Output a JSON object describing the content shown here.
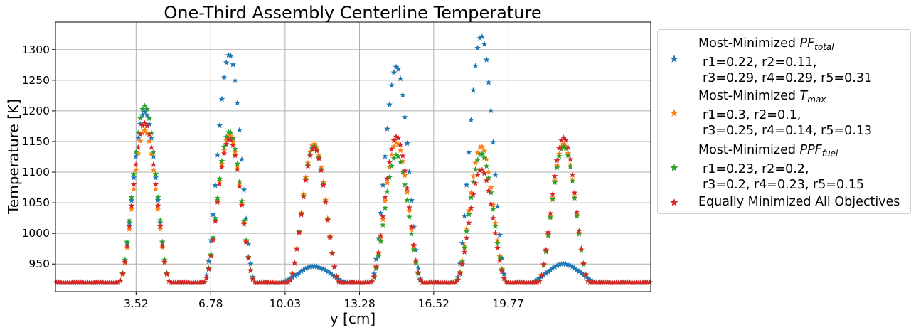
{
  "chart_data": {
    "type": "scatter",
    "title": "One-Third Assembly Centerline Temperature",
    "xlabel": "y [cm]",
    "ylabel": "Temperature [K]",
    "xlim": [
      0,
      26
    ],
    "ylim": [
      905,
      1345
    ],
    "xticks": [
      3.52,
      6.78,
      10.03,
      13.28,
      16.52,
      19.77
    ],
    "xtick_labels": [
      "3.52",
      "6.78",
      "10.03",
      "13.28",
      "16.52",
      "19.77"
    ],
    "yticks": [
      950,
      1000,
      1050,
      1100,
      1150,
      1200,
      1250,
      1300
    ],
    "ytick_labels": [
      "950",
      "1000",
      "1050",
      "1100",
      "1150",
      "1200",
      "1250",
      "1300"
    ],
    "grid": true,
    "legend_position": "outside-right",
    "baseline": 920,
    "marker": "star",
    "peak_half_width": 1.13,
    "series": [
      {
        "name": "Most-Minimized PFtotal",
        "legend_lines": [
          "Most-Minimized PF",
          "r1=0.22, r2=0.11,",
          "r3=0.29, r4=0.29, r5=0.31"
        ],
        "color": "#1f77b4",
        "peaks": [
          {
            "x": 3.9,
            "y": 1198,
            "type": "fuel"
          },
          {
            "x": 7.6,
            "y": 1292,
            "type": "fuel"
          },
          {
            "x": 11.3,
            "y": 946,
            "type": "channel"
          },
          {
            "x": 14.9,
            "y": 1272,
            "type": "fuel"
          },
          {
            "x": 18.6,
            "y": 1322,
            "type": "fuel"
          },
          {
            "x": 22.2,
            "y": 950,
            "type": "channel"
          }
        ]
      },
      {
        "name": "Most-Minimized Tmax",
        "legend_lines": [
          "Most-Minimized T",
          "r1=0.3, r2=0.1,",
          "r3=0.25, r4=0.14, r5=0.13"
        ],
        "color": "#ff7f0e",
        "peaks": [
          {
            "x": 3.9,
            "y": 1168,
            "type": "fuel"
          },
          {
            "x": 7.6,
            "y": 1160,
            "type": "fuel"
          },
          {
            "x": 11.3,
            "y": 1146,
            "type": "fuel"
          },
          {
            "x": 14.9,
            "y": 1148,
            "type": "fuel"
          },
          {
            "x": 18.6,
            "y": 1142,
            "type": "fuel"
          },
          {
            "x": 22.2,
            "y": 1146,
            "type": "fuel"
          }
        ]
      },
      {
        "name": "Most-Minimized PPFfuel",
        "legend_lines": [
          "Most-Minimized PPF",
          "r1=0.23, r2=0.2,",
          "r3=0.2, r4=0.23, r5=0.15"
        ],
        "color": "#2ca02c",
        "peaks": [
          {
            "x": 3.9,
            "y": 1208,
            "type": "fuel"
          },
          {
            "x": 7.6,
            "y": 1166,
            "type": "fuel"
          },
          {
            "x": 11.3,
            "y": 1142,
            "type": "fuel"
          },
          {
            "x": 14.9,
            "y": 1128,
            "type": "fuel"
          },
          {
            "x": 18.6,
            "y": 1130,
            "type": "fuel"
          },
          {
            "x": 22.2,
            "y": 1142,
            "type": "fuel"
          }
        ]
      },
      {
        "name": "Equally Minimized All Objectives",
        "legend_lines": [
          "Equally Minimized All Objectives"
        ],
        "color": "#d62728",
        "peaks": [
          {
            "x": 3.9,
            "y": 1180,
            "type": "fuel"
          },
          {
            "x": 7.6,
            "y": 1154,
            "type": "fuel"
          },
          {
            "x": 11.3,
            "y": 1140,
            "type": "fuel"
          },
          {
            "x": 14.9,
            "y": 1158,
            "type": "fuel"
          },
          {
            "x": 18.6,
            "y": 1104,
            "type": "fuel"
          },
          {
            "x": 22.2,
            "y": 1156,
            "type": "fuel"
          }
        ]
      }
    ]
  },
  "legend": {
    "entries": [
      {
        "line1": "Most-Minimized ",
        "symbol": "PF",
        "sub": "total",
        "line2": "r1=0.22, r2=0.11,",
        "line3": "r3=0.29, r4=0.29, r5=0.31"
      },
      {
        "line1": "Most-Minimized ",
        "symbol": "T",
        "sub": "max",
        "line2": "r1=0.3, r2=0.1,",
        "line3": "r3=0.25, r4=0.14, r5=0.13"
      },
      {
        "line1": "Most-Minimized ",
        "symbol": "PPF",
        "sub": "fuel",
        "line2": "r1=0.23, r2=0.2,",
        "line3": "r3=0.2, r4=0.23, r5=0.15"
      },
      {
        "line1": "Equally Minimized All Objectives"
      }
    ]
  }
}
